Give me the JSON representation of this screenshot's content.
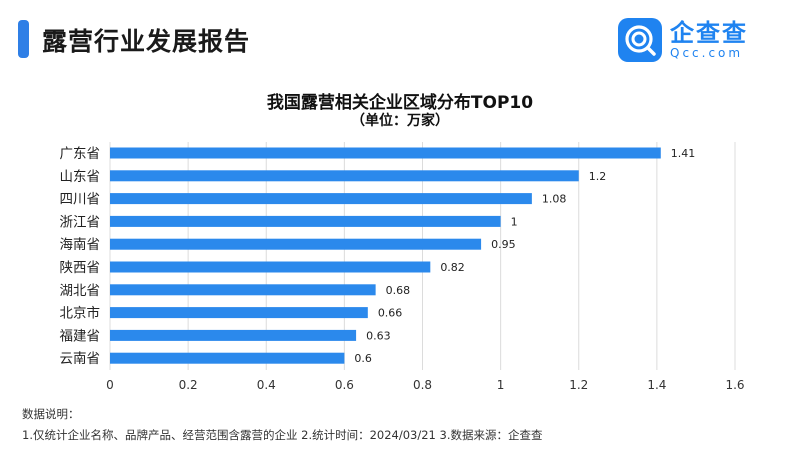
{
  "header": {
    "title": "露营行业发展报告"
  },
  "logo": {
    "icon": "qichacha-logo-icon",
    "name_cn": "企查查",
    "name_en": "Qcc.com"
  },
  "chart_data": {
    "type": "bar",
    "orientation": "horizontal",
    "title": "我国露营相关企业区域分布TOP10",
    "subtitle": "（单位：万家）",
    "categories": [
      "广东省",
      "山东省",
      "四川省",
      "浙江省",
      "海南省",
      "陕西省",
      "湖北省",
      "北京市",
      "福建省",
      "云南省"
    ],
    "values": [
      1.41,
      1.2,
      1.08,
      1,
      0.95,
      0.82,
      0.68,
      0.66,
      0.63,
      0.6
    ],
    "value_labels": [
      "1.41",
      "1.2",
      "1.08",
      "1",
      "0.95",
      "0.82",
      "0.68",
      "0.66",
      "0.63",
      "0.6"
    ],
    "xlim": [
      0,
      1.6
    ],
    "xticks": [
      "0",
      "0.2",
      "0.4",
      "0.6",
      "0.8",
      "1",
      "1.2",
      "1.4",
      "1.6"
    ],
    "grid": true,
    "bar_color": "#2b89ec",
    "grid_color": "#dcdcdc"
  },
  "notes": {
    "heading": "数据说明：",
    "line": "1.仅统计企业名称、品牌产品、经营范围含露营的企业  2.统计时间：2024/03/21   3.数据来源：企查查"
  }
}
